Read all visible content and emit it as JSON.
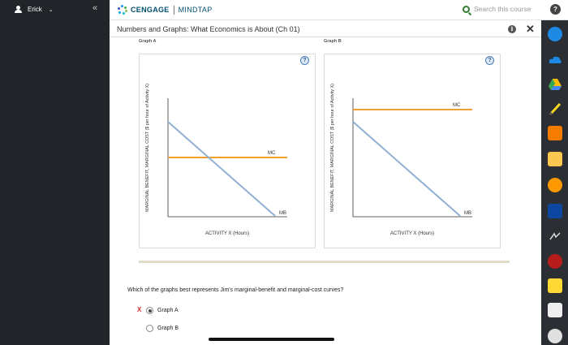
{
  "user": {
    "name": "Erick"
  },
  "brand": {
    "name": "CENGAGE",
    "product": "MINDTAP"
  },
  "search": {
    "placeholder": "Search this course"
  },
  "header": {
    "title": "Numbers and Graphs: What Economics is About (Ch 01)"
  },
  "graphs": [
    {
      "label": "Graph A",
      "y_axis_label": "MARGINAL BENEFIT, MARGINAL COST ($ per hour of Activity X)",
      "x_axis_label": "ACTIVITY X (Hours)",
      "mc_label": "MC",
      "mb_label": "MB",
      "help": "?"
    },
    {
      "label": "Graph B",
      "y_axis_label": "MARGINAL BENEFIT, MARGINAL COST ($ per hour of Activity X)",
      "x_axis_label": "ACTIVITY X (Hours)",
      "mc_label": "MC",
      "mb_label": "MB",
      "help": "?"
    }
  ],
  "question": {
    "text": "Which of the graphs best represents Jim's marginal-benefit and marginal-cost curves?",
    "wrong_mark": "X",
    "options": [
      {
        "label": "Graph A",
        "selected": true
      },
      {
        "label": "Graph B",
        "selected": false
      }
    ]
  },
  "colors": {
    "mc_line": "#f0a030",
    "mb_line": "#8fb0d3",
    "axis": "#333333"
  },
  "dock_icons": [
    "cengage-icon",
    "cloud-icon",
    "drive-icon",
    "pen-icon",
    "rss-icon",
    "dictionary-icon",
    "audio-icon",
    "book-icon",
    "flashcards-icon",
    "adobe-icon",
    "notes-icon",
    "messages-icon",
    "chat-icon"
  ]
}
